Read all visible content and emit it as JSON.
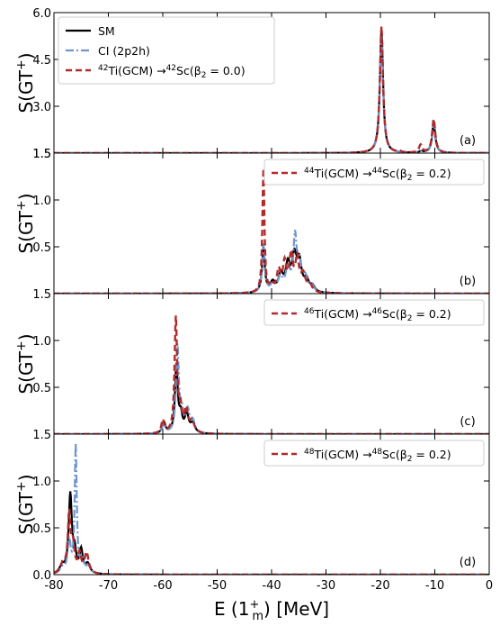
{
  "figure": {
    "xlabel": "E (1",
    "xlabel_sub": "m",
    "xlabel_sup": "+",
    "xlabel_tail": ") [MeV]",
    "ylabel_main": "S(GT",
    "ylabel_sup": "+",
    "ylabel_tail": ")"
  },
  "colors": {
    "sm": "#000000",
    "ci": "#6f96cf",
    "gcm": "#b22a2a"
  },
  "chart_data": [
    {
      "type": "line",
      "panel_label": "(a)",
      "xlim": [
        -80,
        0
      ],
      "ylim": [
        1.5,
        6.0
      ],
      "yticks": [
        "1.5",
        "3.0",
        "4.5",
        "6.0"
      ],
      "ytick_values": [
        1.5,
        3.0,
        4.5,
        6.0
      ],
      "legend_position": "top-left",
      "legend": [
        {
          "key": "sm",
          "text": "SM"
        },
        {
          "key": "ci",
          "text": "CI (2p2h)"
        },
        {
          "key": "gcm",
          "pre": "",
          "sup1": "42",
          "mid": "Ti(GCM) →",
          "sup2": "42",
          "post": "Sc(β",
          "sub": "2",
          "tail": " = 0.0)"
        }
      ],
      "series": [
        {
          "key": "sm",
          "name": "SM",
          "peaks": [
            [
              -19.8,
              3.95,
              0.35
            ],
            [
              -10.2,
              0.95,
              0.35
            ],
            [
              -12.5,
              0.05,
              0.4
            ]
          ]
        },
        {
          "key": "ci",
          "name": "CI (2p2h)",
          "peaks": [
            [
              -19.8,
              3.75,
              0.35
            ],
            [
              -10.2,
              1.05,
              0.35
            ],
            [
              -12.4,
              0.05,
              0.4
            ]
          ]
        },
        {
          "key": "gcm",
          "name": "42Ti(GCM) →42Sc(β2 = 0.0)",
          "peaks": [
            [
              -19.8,
              4.05,
              0.35
            ],
            [
              -10.2,
              1.08,
              0.35
            ],
            [
              -12.6,
              0.25,
              0.35
            ],
            [
              -16.5,
              0.04,
              0.4
            ]
          ]
        }
      ]
    },
    {
      "type": "line",
      "panel_label": "(b)",
      "xlim": [
        -80,
        0
      ],
      "ylim": [
        0,
        1.5
      ],
      "yticks": [
        "0.5",
        "1.0",
        "1.5"
      ],
      "ytick_values": [
        0.5,
        1.0,
        1.5
      ],
      "legend_position": "top-right",
      "legend": [
        {
          "key": "gcm",
          "pre": "",
          "sup1": "44",
          "mid": "Ti(GCM) →",
          "sup2": "44",
          "post": "Sc(β",
          "sub": "2",
          "tail": " = 0.2)"
        }
      ],
      "series": [
        {
          "key": "sm",
          "name": "SM",
          "peaks": [
            [
              -41.5,
              0.48,
              0.3
            ],
            [
              -39.8,
              0.1,
              0.5
            ],
            [
              -38.3,
              0.18,
              0.5
            ],
            [
              -37.0,
              0.28,
              0.5
            ],
            [
              -35.8,
              0.35,
              0.5
            ],
            [
              -34.9,
              0.3,
              0.5
            ],
            [
              -33.6,
              0.12,
              0.5
            ],
            [
              -32.5,
              0.06,
              0.5
            ]
          ]
        },
        {
          "key": "ci",
          "name": "CI (2p2h)",
          "peaks": [
            [
              -41.5,
              0.52,
              0.3
            ],
            [
              -39.8,
              0.08,
              0.5
            ],
            [
              -38.4,
              0.15,
              0.5
            ],
            [
              -37.0,
              0.25,
              0.5
            ],
            [
              -35.7,
              0.55,
              0.35
            ],
            [
              -34.9,
              0.28,
              0.5
            ],
            [
              -33.8,
              0.14,
              0.5
            ],
            [
              -32.6,
              0.06,
              0.5
            ]
          ]
        },
        {
          "key": "gcm",
          "name": "44Ti(GCM) →44Sc(β2 = 0.2)",
          "peaks": [
            [
              -41.5,
              1.32,
              0.22
            ],
            [
              -40.0,
              0.08,
              0.4
            ],
            [
              -38.7,
              0.22,
              0.4
            ],
            [
              -37.6,
              0.3,
              0.4
            ],
            [
              -36.4,
              0.38,
              0.4
            ],
            [
              -35.3,
              0.34,
              0.4
            ],
            [
              -34.2,
              0.18,
              0.5
            ],
            [
              -33.0,
              0.08,
              0.5
            ]
          ]
        }
      ]
    },
    {
      "type": "line",
      "panel_label": "(c)",
      "xlim": [
        -80,
        0
      ],
      "ylim": [
        0,
        1.5
      ],
      "yticks": [
        "0.5",
        "1.0",
        "1.5"
      ],
      "ytick_values": [
        0.5,
        1.0,
        1.5
      ],
      "legend_position": "top-right",
      "legend": [
        {
          "key": "gcm",
          "pre": "",
          "sup1": "46",
          "mid": "Ti(GCM) →",
          "sup2": "46",
          "post": "Sc(β",
          "sub": "2",
          "tail": " = 0.2)"
        }
      ],
      "series": [
        {
          "key": "sm",
          "name": "SM",
          "peaks": [
            [
              -59.8,
              0.12,
              0.35
            ],
            [
              -57.5,
              0.72,
              0.3
            ],
            [
              -56.7,
              0.18,
              0.35
            ],
            [
              -55.6,
              0.2,
              0.4
            ],
            [
              -54.5,
              0.1,
              0.5
            ]
          ]
        },
        {
          "key": "ci",
          "name": "CI (2p2h)",
          "peaks": [
            [
              -59.8,
              0.1,
              0.35
            ],
            [
              -57.3,
              0.92,
              0.3
            ],
            [
              -56.5,
              0.2,
              0.35
            ],
            [
              -55.4,
              0.22,
              0.4
            ],
            [
              -54.5,
              0.12,
              0.5
            ]
          ]
        },
        {
          "key": "gcm",
          "name": "46Ti(GCM) →46Sc(β2 = 0.2)",
          "peaks": [
            [
              -60.0,
              0.14,
              0.3
            ],
            [
              -57.6,
              1.22,
              0.28
            ],
            [
              -56.8,
              0.25,
              0.3
            ],
            [
              -55.7,
              0.24,
              0.4
            ],
            [
              -54.6,
              0.12,
              0.5
            ]
          ]
        }
      ]
    },
    {
      "type": "line",
      "panel_label": "(d)",
      "xlim": [
        -80,
        0
      ],
      "ylim": [
        0,
        1.5
      ],
      "yticks": [
        "0.0",
        "0.5",
        "1.0",
        "1.5"
      ],
      "ytick_values": [
        0.0,
        0.5,
        1.0,
        1.5
      ],
      "legend_position": "top-right",
      "legend": [
        {
          "key": "gcm",
          "pre": "",
          "sup1": "48",
          "mid": "Ti(GCM) →",
          "sup2": "48",
          "post": "Sc(β",
          "sub": "2",
          "tail": " = 0.2)"
        }
      ],
      "series": [
        {
          "key": "sm",
          "name": "SM",
          "peaks": [
            [
              -78.5,
              0.08,
              0.5
            ],
            [
              -77.0,
              0.84,
              0.35
            ],
            [
              -76.2,
              0.2,
              0.35
            ],
            [
              -75.0,
              0.24,
              0.35
            ],
            [
              -73.8,
              0.1,
              0.5
            ]
          ]
        },
        {
          "key": "ci",
          "name": "CI (2p2h)",
          "peaks": [
            [
              -78.5,
              0.06,
              0.5
            ],
            [
              -77.2,
              0.35,
              0.35
            ],
            [
              -76.0,
              1.36,
              0.22
            ],
            [
              -74.8,
              0.15,
              0.4
            ],
            [
              -73.6,
              0.08,
              0.5
            ]
          ]
        },
        {
          "key": "gcm",
          "name": "48Ti(GCM) →48Sc(β2 = 0.2)",
          "peaks": [
            [
              -78.3,
              0.12,
              0.45
            ],
            [
              -77.2,
              0.62,
              0.3
            ],
            [
              -76.5,
              0.28,
              0.35
            ],
            [
              -75.3,
              0.2,
              0.35
            ],
            [
              -74.0,
              0.22,
              0.45
            ]
          ]
        }
      ]
    }
  ],
  "xticks": [
    "-80",
    "-70",
    "-60",
    "-50",
    "-40",
    "-30",
    "-20",
    "-10",
    "0"
  ],
  "xtick_values": [
    -80,
    -70,
    -60,
    -50,
    -40,
    -30,
    -20,
    -10,
    0
  ]
}
